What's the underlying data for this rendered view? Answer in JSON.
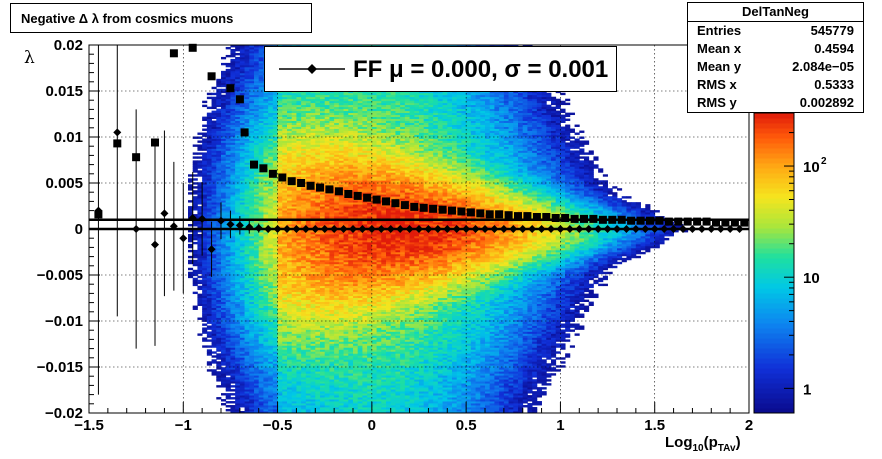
{
  "title": "Negative Δ λ from cosmics muons",
  "stats": {
    "name": "DelTanNeg",
    "rows": [
      {
        "label": "Entries",
        "value": "545779"
      },
      {
        "label": "Mean x",
        "value": "0.4594"
      },
      {
        "label": "Mean y",
        "value": "2.084e−05"
      },
      {
        "label": "RMS x",
        "value": "0.5333"
      },
      {
        "label": "RMS y",
        "value": "0.002892"
      }
    ]
  },
  "legend": {
    "text": "FF μ =  0.000, σ =   0.001"
  },
  "chart_data": {
    "type": "heatmap",
    "title": "Negative Δ λ from cosmics muons",
    "xlabel": "Log10(pTAv)",
    "xlabel_main": "Log",
    "xlabel_sub1": "10",
    "xlabel_mid": "(p",
    "xlabel_sub2": "TAv",
    "xlabel_end": ")",
    "ylabel": "λ",
    "xlim": [
      -1.5,
      2
    ],
    "ylim": [
      -0.02,
      0.02
    ],
    "x_ticks": [
      {
        "v": -1.5,
        "label": "−1.5"
      },
      {
        "v": -1.0,
        "label": "−1"
      },
      {
        "v": -0.5,
        "label": "−0.5"
      },
      {
        "v": 0.0,
        "label": "0"
      },
      {
        "v": 0.5,
        "label": "0.5"
      },
      {
        "v": 1.0,
        "label": "1"
      },
      {
        "v": 1.5,
        "label": "1.5"
      },
      {
        "v": 2.0,
        "label": "2"
      }
    ],
    "y_ticks": [
      {
        "v": 0.02,
        "label": "0.02"
      },
      {
        "v": 0.015,
        "label": "0.015"
      },
      {
        "v": 0.01,
        "label": "0.01"
      },
      {
        "v": 0.005,
        "label": "0.005"
      },
      {
        "v": 0.0,
        "label": "0"
      },
      {
        "v": -0.005,
        "label": "−0.005"
      },
      {
        "v": -0.01,
        "label": "−0.01"
      },
      {
        "v": -0.015,
        "label": "−0.015"
      },
      {
        "v": -0.02,
        "label": "−0.02"
      }
    ],
    "z_scale": "log",
    "z_range": [
      0.6,
      300
    ],
    "z_ticks": [
      {
        "v": 1,
        "label": "1"
      },
      {
        "v": 10,
        "label": "10"
      },
      {
        "v": 100,
        "label": "10",
        "sup": "2"
      }
    ],
    "grid": true,
    "fit_lines_y": [
      0.001,
      0.0
    ],
    "rms_profile": {
      "x": [
        -1.45,
        -1.35,
        -1.25,
        -1.15,
        -1.05,
        -0.95,
        -0.85,
        -0.75,
        -0.7,
        -0.675,
        -0.625,
        -0.575,
        -0.525,
        -0.475,
        -0.425,
        -0.375,
        -0.325,
        -0.275,
        -0.225,
        -0.175,
        -0.125,
        -0.075,
        -0.025,
        0.025,
        0.075,
        0.125,
        0.175,
        0.225,
        0.275,
        0.325,
        0.375,
        0.425,
        0.475,
        0.525,
        0.575,
        0.625,
        0.675,
        0.725,
        0.775,
        0.825,
        0.875,
        0.925,
        0.975,
        1.025,
        1.075,
        1.125,
        1.175,
        1.225,
        1.275,
        1.325,
        1.375,
        1.425,
        1.475,
        1.525,
        1.575,
        1.625,
        1.675,
        1.725,
        1.775,
        1.825,
        1.875,
        1.925,
        1.975
      ],
      "y": [
        0.0016,
        0.0093,
        0.0078,
        0.0094,
        0.0191,
        0.0197,
        0.0166,
        0.0153,
        0.0141,
        0.0105,
        0.007,
        0.0066,
        0.006,
        0.0056,
        0.0052,
        0.005,
        0.0047,
        0.0045,
        0.0043,
        0.0041,
        0.0038,
        0.0036,
        0.0034,
        0.0032,
        0.003,
        0.0028,
        0.0026,
        0.0024,
        0.0023,
        0.0022,
        0.0021,
        0.002,
        0.0019,
        0.0018,
        0.0017,
        0.0016,
        0.0016,
        0.0015,
        0.0014,
        0.0014,
        0.0013,
        0.0013,
        0.0012,
        0.0012,
        0.0011,
        0.0011,
        0.0011,
        0.001,
        0.001,
        0.001,
        0.0009,
        0.0009,
        0.0009,
        0.0009,
        0.0008,
        0.0008,
        0.0008,
        0.0008,
        0.0008,
        0.0007,
        0.0007,
        0.0007,
        0.0007
      ]
    },
    "mean_profile": {
      "x": [
        -1.45,
        -1.35,
        -1.25,
        -1.15,
        -1.1,
        -1.05,
        -1.0,
        -0.95,
        -0.9,
        -0.85,
        -0.8,
        -0.75,
        -0.7,
        -0.65,
        -0.6,
        -0.55,
        -0.5,
        -0.45,
        -0.4,
        -0.35,
        -0.3,
        -0.25,
        -0.2,
        -0.15,
        -0.1,
        -0.05,
        0.0,
        0.05,
        0.1,
        0.15,
        0.2,
        0.25,
        0.3,
        0.35,
        0.4,
        0.45,
        0.5,
        0.55,
        0.6,
        0.65,
        0.7,
        0.75,
        0.8,
        0.85,
        0.9,
        0.95,
        1.0,
        1.05,
        1.1,
        1.15,
        1.2,
        1.25,
        1.3,
        1.35,
        1.4,
        1.45,
        1.5,
        1.55,
        1.6,
        1.65,
        1.7,
        1.75,
        1.8,
        1.85,
        1.9,
        1.95
      ],
      "y": [
        0.002,
        0.0105,
        0.0,
        -0.0017,
        0.0017,
        0.0003,
        -0.001,
        0.0012,
        0.0011,
        -0.0022,
        0.0009,
        0.0005,
        0.0004,
        0.0002,
        0.0001,
        0.0,
        0.0,
        0.0,
        0.0,
        0.0,
        0.0,
        0.0,
        0.0,
        0.0,
        0.0,
        0.0,
        0.0,
        0.0,
        0.0,
        0.0,
        0.0,
        0.0,
        0.0,
        0.0,
        0.0,
        0.0,
        0.0,
        0.0,
        0.0,
        0.0,
        0.0,
        0.0,
        0.0,
        0.0,
        0.0,
        0.0,
        0.0,
        0.0,
        0.0,
        0.0,
        0.0,
        0.0,
        0.0,
        0.0,
        0.0,
        0.0,
        0.0,
        0.0,
        0.0,
        0.0,
        0.0,
        0.0,
        0.0,
        0.0,
        0.0,
        0.0
      ],
      "err": [
        0.02,
        0.02,
        0.013,
        0.011,
        0.009,
        0.007,
        0.006,
        0.005,
        0.004,
        0.003,
        0.002,
        0.0015,
        0.001,
        0.0007,
        0.0005,
        0.0004,
        0.0003,
        0.0002,
        0.0002,
        0.0001,
        0.0001,
        0.0001,
        0.0001,
        0.0001,
        0.0001,
        0.0001,
        0.0001,
        0.0001,
        0.0001,
        0.0001,
        0.0001,
        0.0001,
        0.0001,
        0.0001,
        0.0001,
        0.0001,
        0.0001,
        0.0001,
        0.0001,
        0.0001,
        0.0001,
        0.0001,
        0.0001,
        0.0001,
        0.0001,
        0.0001,
        0.0001,
        0.0001,
        0.0001,
        0.0001,
        0.0001,
        0.0001,
        0.0001,
        0.0001,
        0.0001,
        0.0001,
        0.0001,
        0.0001,
        0.0001,
        0.0001,
        0.0001,
        0.0001,
        0.0001,
        0.0001,
        0.0001,
        0.0001
      ]
    }
  }
}
